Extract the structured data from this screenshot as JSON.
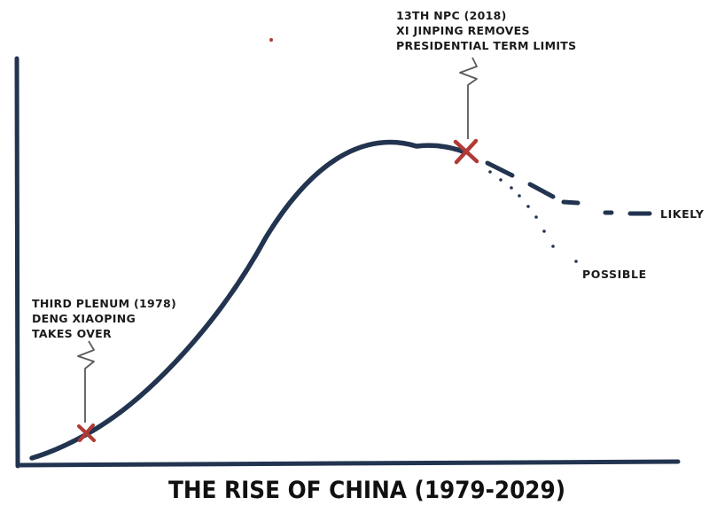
{
  "title": "THE RISE OF CHINA (1979-2029)",
  "annotations": {
    "start": [
      "THIRD PLENUM (1978)",
      "DENG XIAOPING",
      "TAKES OVER"
    ],
    "peak": [
      "13TH NPC (2018)",
      "XI JINPING REMOVES",
      "PRESIDENTIAL TERM LIMITS"
    ]
  },
  "labels": {
    "likely": "LIKELY",
    "possible": "POSSIBLE"
  },
  "colors": {
    "curve": "#22344f",
    "marker": "#b03a35",
    "axis": "#22344f",
    "pointer": "#5a5a5a"
  }
}
